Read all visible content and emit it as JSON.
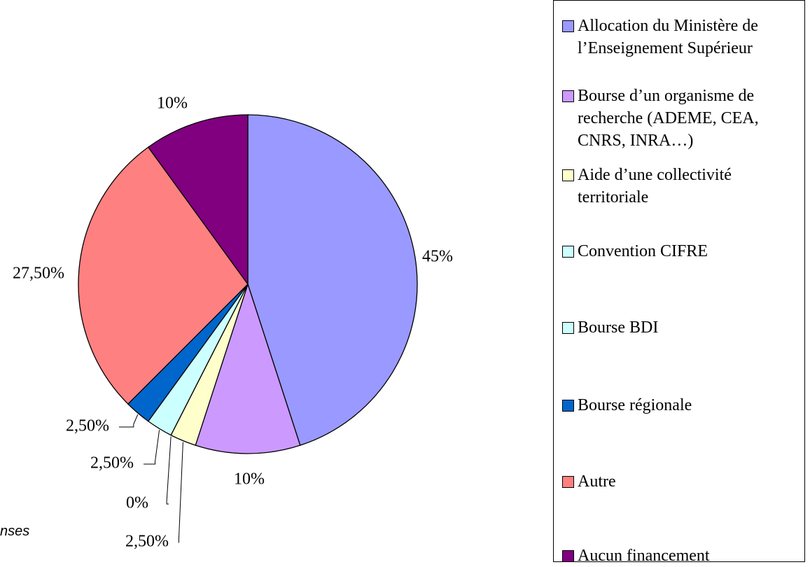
{
  "chart_data": {
    "type": "pie",
    "categories": [
      "Allocation du Ministère de l’Enseignement Supérieur",
      "Bourse d’un organisme de recherche (ADEME, CEA, CNRS, INRA…)",
      "Aide d’une collectivité territoriale",
      "Convention CIFRE",
      "Bourse BDI",
      "Bourse régionale",
      "Autre",
      "Aucun financement"
    ],
    "values": [
      45,
      10,
      2.5,
      0,
      2.5,
      2.5,
      27.5,
      10
    ],
    "value_labels": [
      "45%",
      "10%",
      "2,50%",
      "0%",
      "2,50%",
      "2,50%",
      "27,50%",
      "10%"
    ],
    "colors": [
      "#9999ff",
      "#cc99ff",
      "#ffffcc",
      "#ccffff",
      "#ccffff",
      "#0066cc",
      "#ff8080",
      "#800080"
    ],
    "note": "nses"
  }
}
